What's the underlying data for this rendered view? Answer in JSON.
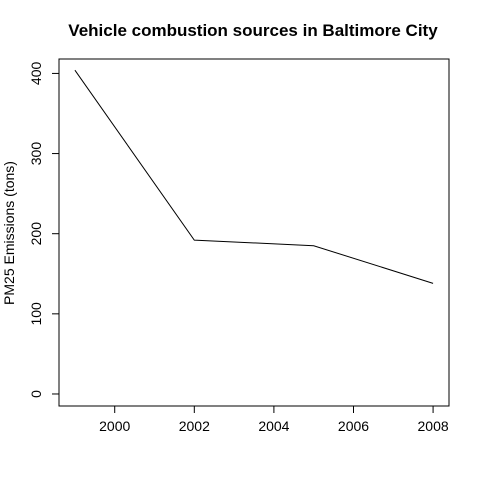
{
  "chart_data": {
    "type": "line",
    "title": "Vehicle combustion sources in Baltimore City",
    "xlabel": "",
    "ylabel": "PM25 Emissions (tons)",
    "x": [
      1999,
      2002,
      2005,
      2008
    ],
    "series": [
      {
        "values": [
          404,
          192,
          185,
          138
        ]
      }
    ],
    "xlim": [
      1998.6,
      2008.4
    ],
    "ylim": [
      -15,
      418
    ],
    "xticks": [
      2000,
      2002,
      2004,
      2006,
      2008
    ],
    "yticks": [
      0,
      100,
      200,
      300,
      400
    ],
    "xtick_labels": [
      "2000",
      "2002",
      "2004",
      "2006",
      "2008"
    ],
    "ytick_labels": [
      "0",
      "100",
      "200",
      "300",
      "400"
    ],
    "grid": false,
    "line_color": "#000000"
  }
}
